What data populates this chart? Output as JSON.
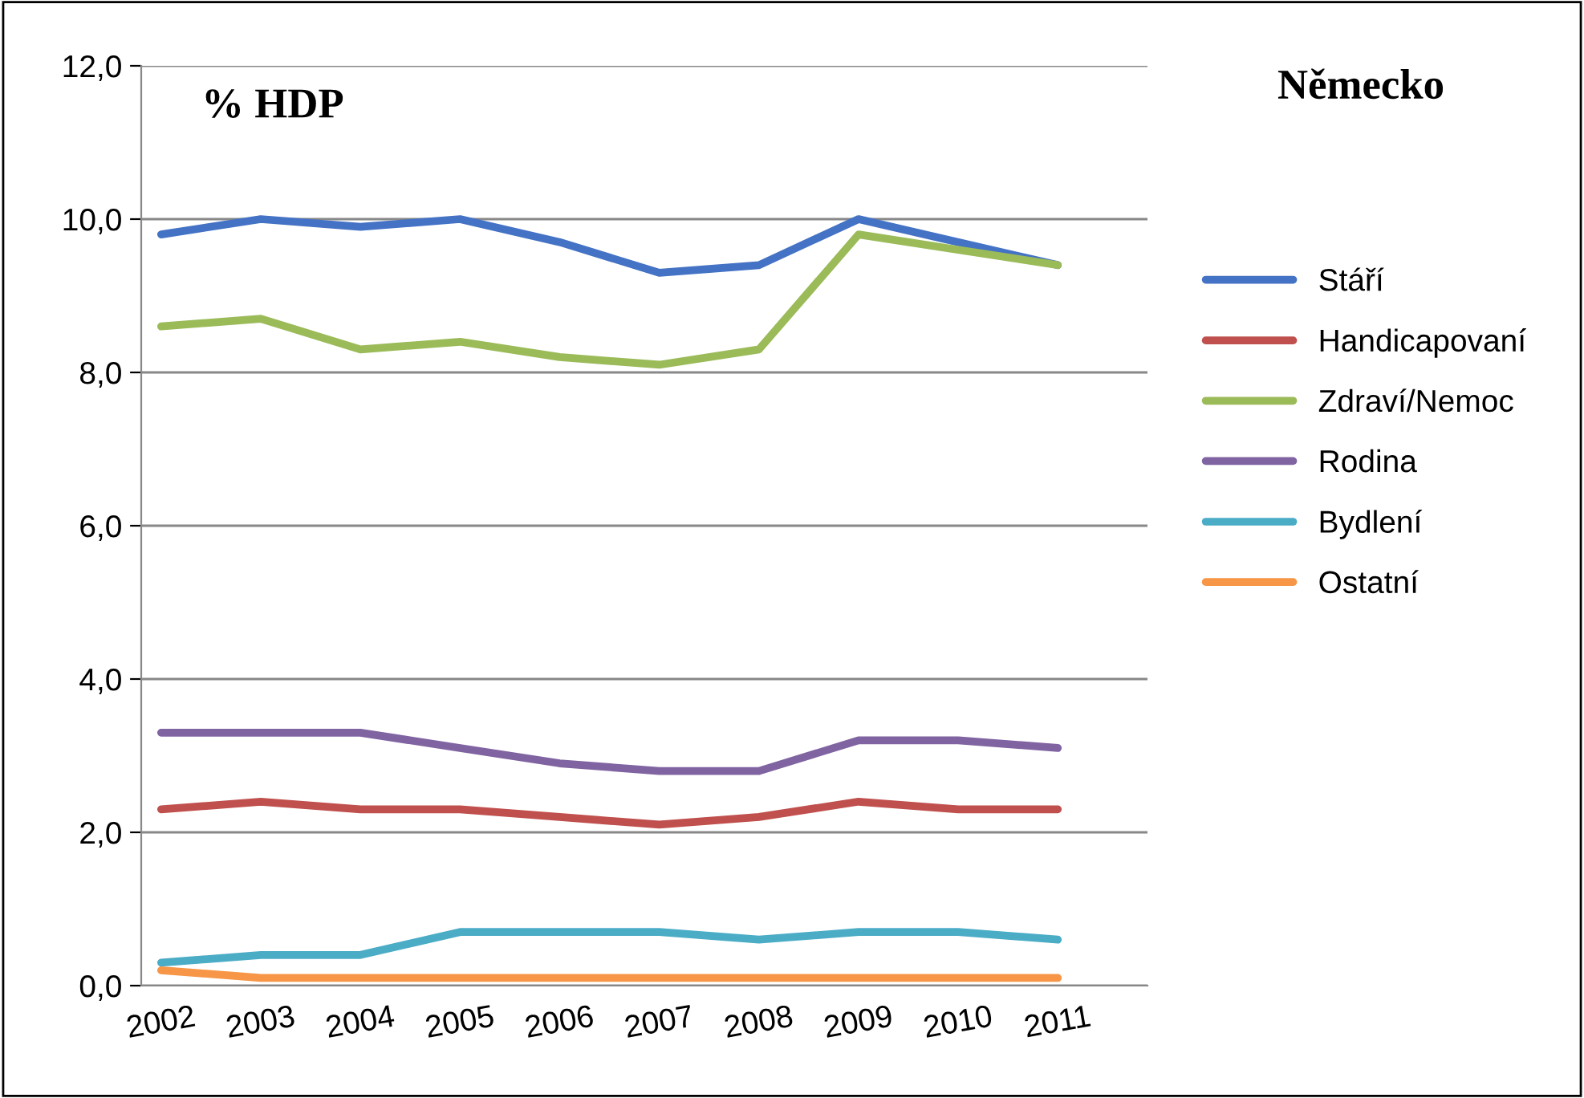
{
  "chart_data": {
    "type": "line",
    "title": "Německo",
    "annotations": [
      "% HDP"
    ],
    "categories": [
      "2002",
      "2003",
      "2004",
      "2005",
      "2006",
      "2007",
      "2008",
      "2009",
      "2010",
      "2011"
    ],
    "series": [
      {
        "name": "Stáří",
        "color": "#4472c4",
        "values": [
          9.8,
          10.0,
          9.9,
          10.0,
          9.7,
          9.3,
          9.4,
          10.0,
          9.7,
          9.4
        ]
      },
      {
        "name": "Handicapovaní",
        "color": "#c0504d",
        "values": [
          2.3,
          2.4,
          2.3,
          2.3,
          2.2,
          2.1,
          2.2,
          2.4,
          2.3,
          2.3
        ]
      },
      {
        "name": "Zdraví/Nemoc",
        "color": "#9bbb59",
        "values": [
          8.6,
          8.7,
          8.3,
          8.4,
          8.2,
          8.1,
          8.3,
          9.8,
          9.6,
          9.4
        ]
      },
      {
        "name": "Rodina",
        "color": "#8064a2",
        "values": [
          3.3,
          3.3,
          3.3,
          3.1,
          2.9,
          2.8,
          2.8,
          3.2,
          3.2,
          3.1
        ]
      },
      {
        "name": "Bydlení",
        "color": "#4bacc6",
        "values": [
          0.3,
          0.4,
          0.4,
          0.7,
          0.7,
          0.7,
          0.6,
          0.7,
          0.7,
          0.6
        ]
      },
      {
        "name": "Ostatní",
        "color": "#f79646",
        "values": [
          0.2,
          0.1,
          0.1,
          0.1,
          0.1,
          0.1,
          0.1,
          0.1,
          0.1,
          0.1
        ]
      }
    ],
    "ylim": [
      0,
      12
    ],
    "yticks": [
      {
        "value": 0,
        "label": "0,0"
      },
      {
        "value": 2,
        "label": "2,0"
      },
      {
        "value": 4,
        "label": "4,0"
      },
      {
        "value": 6,
        "label": "6,0"
      },
      {
        "value": 8,
        "label": "8,0"
      },
      {
        "value": 10,
        "label": "10,0"
      },
      {
        "value": 12,
        "label": "12,0"
      }
    ],
    "grid": "y",
    "legend": "right",
    "marker": "none",
    "line_style": "solid"
  }
}
